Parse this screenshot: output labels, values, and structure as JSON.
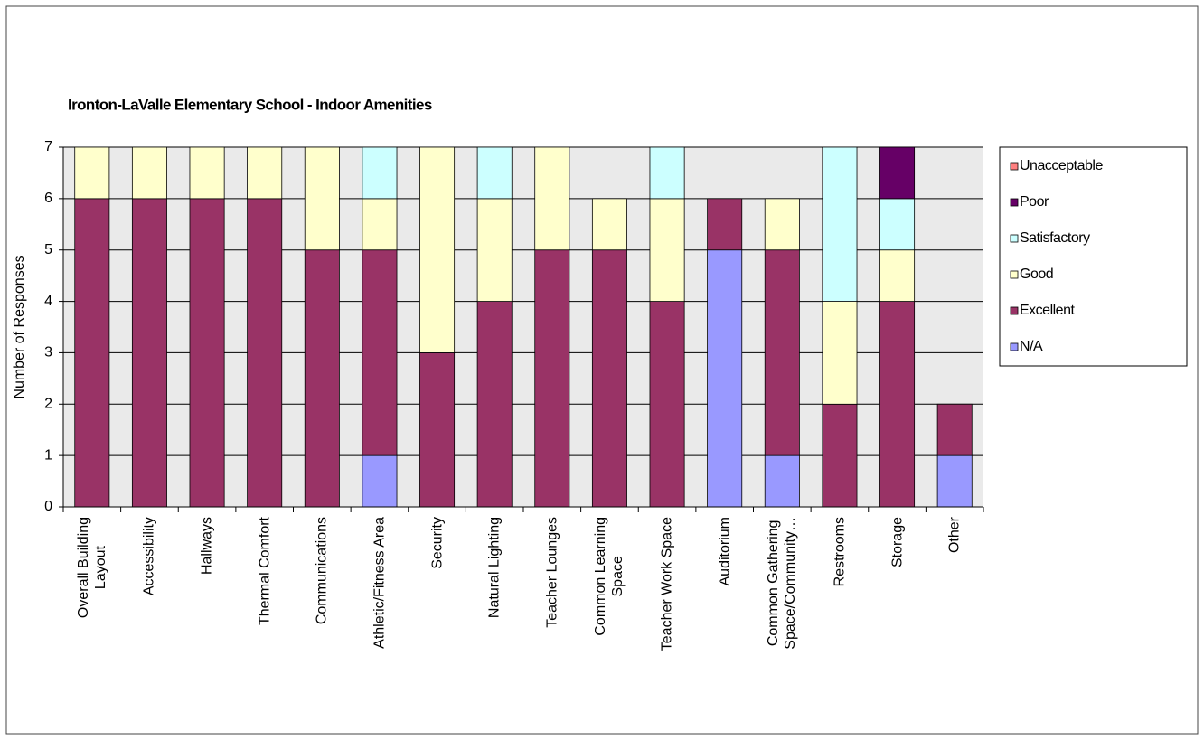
{
  "chart_data": {
    "type": "stacked_bar",
    "title": "Ironton-LaValle Elementary School - Indoor Amenities",
    "y_label": "Number of Responses",
    "categories": [
      "Overall Building\nLayout",
      "Accessibility",
      "Hallways",
      "Thermal Comfort",
      "Communications",
      "Athletic/Fitness Area",
      "Security",
      "Natural Lighting",
      "Teacher Lounges",
      "Common Learning\nSpace",
      "Teacher Work Space",
      "Auditorium",
      "Common Gathering\nSpace/Community…",
      "Restrooms",
      "Storage",
      "Other"
    ],
    "series": [
      {
        "name": "N/A",
        "color": "#9999ff",
        "values": [
          0,
          0,
          0,
          0,
          0,
          1,
          0,
          0,
          0,
          0,
          0,
          5,
          1,
          0,
          0,
          1
        ]
      },
      {
        "name": "Excellent",
        "color": "#993366",
        "values": [
          6,
          6,
          6,
          6,
          5,
          4,
          3,
          4,
          5,
          5,
          4,
          1,
          4,
          2,
          4,
          1
        ]
      },
      {
        "name": "Good",
        "color": "#ffffcc",
        "values": [
          1,
          1,
          1,
          1,
          2,
          1,
          4,
          2,
          2,
          1,
          2,
          0,
          1,
          2,
          1,
          0
        ]
      },
      {
        "name": "Satisfactory",
        "color": "#ccffff",
        "values": [
          0,
          0,
          0,
          0,
          0,
          1,
          0,
          1,
          0,
          0,
          1,
          0,
          0,
          3,
          1,
          0
        ]
      },
      {
        "name": "Poor",
        "color": "#660066",
        "values": [
          0,
          0,
          0,
          0,
          0,
          0,
          0,
          0,
          0,
          0,
          0,
          0,
          0,
          0,
          1,
          0
        ]
      },
      {
        "name": "Unacceptable",
        "color": "#ff8080",
        "values": [
          0,
          0,
          0,
          0,
          0,
          0,
          0,
          0,
          0,
          0,
          0,
          0,
          0,
          0,
          0,
          0
        ]
      }
    ],
    "ylim": [
      0,
      7
    ],
    "yticks": [
      0,
      1,
      2,
      3,
      4,
      5,
      6,
      7
    ],
    "grid": true,
    "legend": "right"
  }
}
